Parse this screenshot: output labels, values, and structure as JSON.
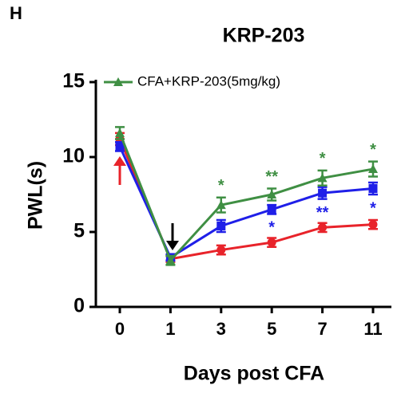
{
  "chart_data": {
    "type": "line",
    "panel_label": "H",
    "title": "KRP-203",
    "y_label": "PWL(s)",
    "x_label": "Days post CFA",
    "categories": [
      "0",
      "1",
      "3",
      "5",
      "7",
      "11"
    ],
    "ylim": [
      0,
      15
    ],
    "yticks": [
      0,
      5,
      10,
      15
    ],
    "legend": "top-left",
    "series": [
      {
        "name": "CFA+KRP-203(5mg/kg)",
        "color": "#3f8f43",
        "marker": "triangle",
        "values": [
          11.6,
          3.1,
          6.8,
          7.5,
          8.6,
          9.2
        ],
        "errors": [
          0.4,
          0.3,
          0.5,
          0.4,
          0.5,
          0.5
        ],
        "annotations": [
          null,
          null,
          "*",
          "**",
          "*",
          "*"
        ]
      },
      {
        "color": "#1f1fe8",
        "marker": "square",
        "values": [
          10.7,
          3.3,
          5.4,
          6.5,
          7.6,
          7.9
        ],
        "errors": [
          0.3,
          0.2,
          0.4,
          0.3,
          0.4,
          0.4
        ],
        "annotations": [
          null,
          null,
          null,
          "*",
          "**",
          "*"
        ]
      },
      {
        "color": "#e8232a",
        "marker": "circle",
        "values": [
          11.2,
          3.2,
          3.8,
          4.3,
          5.3,
          5.5
        ],
        "errors": [
          0.4,
          0.2,
          0.3,
          0.3,
          0.3,
          0.3
        ]
      }
    ]
  }
}
